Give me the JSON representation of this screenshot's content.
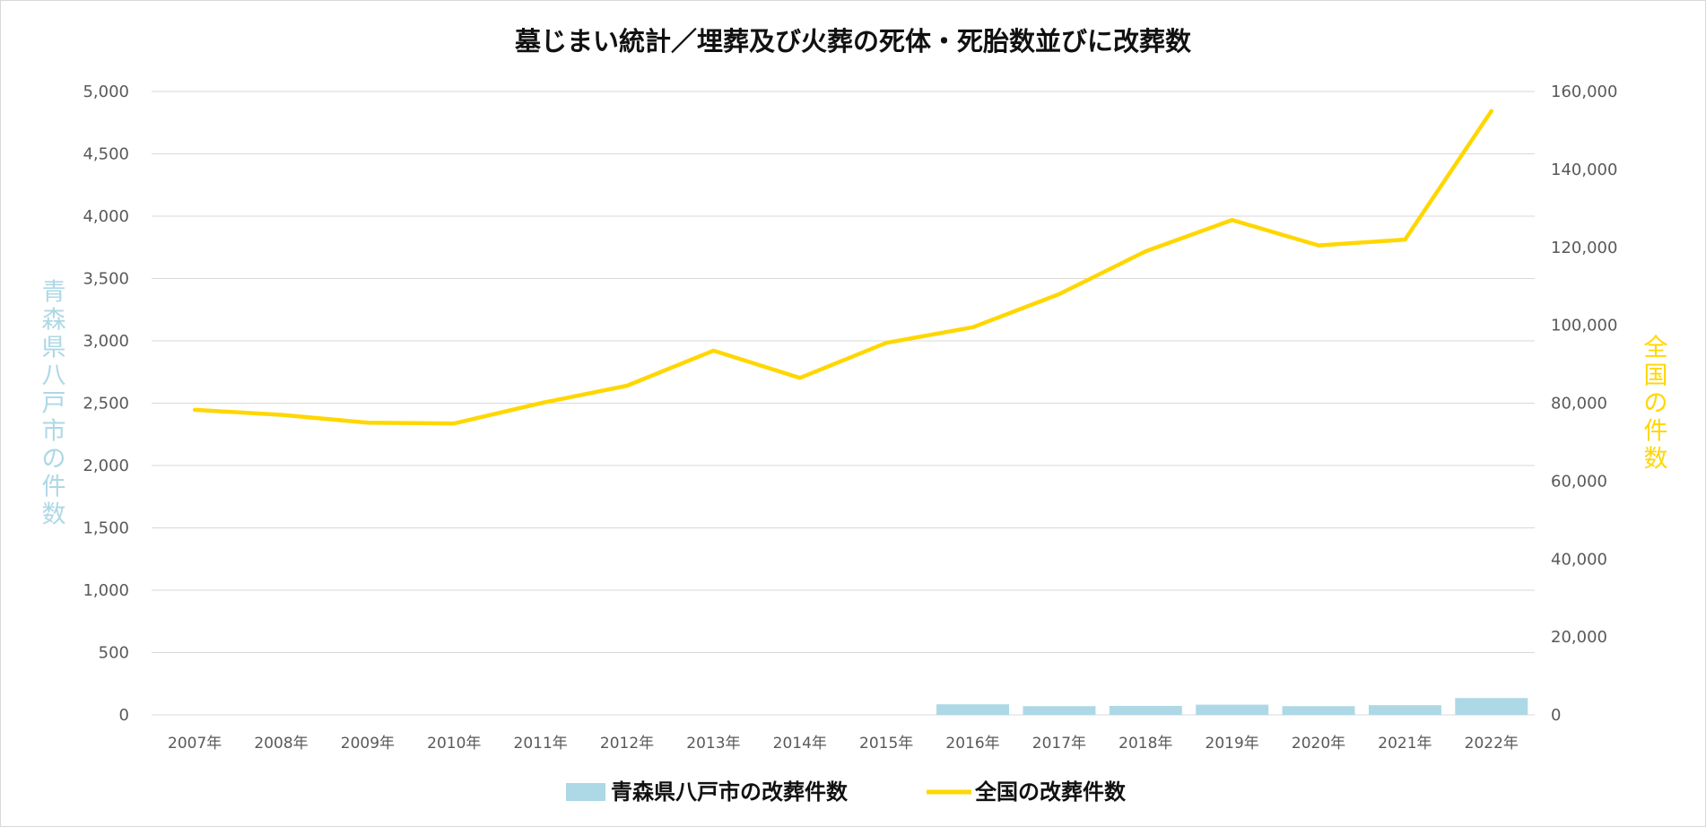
{
  "chart_data": {
    "type": "bar+line",
    "title": "墓じまい統計／埋葬及び火葬の死体・死胎数並びに改葬数",
    "categories": [
      "2007年",
      "2008年",
      "2009年",
      "2010年",
      "2011年",
      "2012年",
      "2013年",
      "2014年",
      "2015年",
      "2016年",
      "2017年",
      "2018年",
      "2019年",
      "2020年",
      "2021年",
      "2022年"
    ],
    "series": [
      {
        "name": "青森県八戸市の改葬件数",
        "type": "bar",
        "axis": "left",
        "color": "#add8e6",
        "values": [
          null,
          null,
          null,
          null,
          null,
          null,
          null,
          null,
          null,
          85,
          70,
          72,
          82,
          70,
          78,
          135
        ]
      },
      {
        "name": "全国の改葬件数",
        "type": "line",
        "axis": "right",
        "color": "#ffd700",
        "values": [
          78300,
          77000,
          75000,
          74800,
          80000,
          84500,
          93500,
          86500,
          95500,
          99500,
          108000,
          119000,
          127000,
          120500,
          122000,
          155000
        ]
      }
    ],
    "y_left": {
      "label": "青森県八戸市の件数",
      "ylim": [
        0,
        5000
      ],
      "ticks": [
        "5,000",
        "4,500",
        "4,000",
        "3,500",
        "3,000",
        "2,500",
        "2,000",
        "1,500",
        "1,000",
        "500",
        "0"
      ],
      "color": "#add8e6"
    },
    "y_right": {
      "label": "全国の件数",
      "ylim": [
        0,
        160000
      ],
      "ticks": [
        "160,000",
        "140,000",
        "120,000",
        "100,000",
        "80,000",
        "60,000",
        "40,000",
        "20,000",
        "0"
      ],
      "color": "#ffd700"
    },
    "grid": true,
    "legend_position": "bottom"
  }
}
